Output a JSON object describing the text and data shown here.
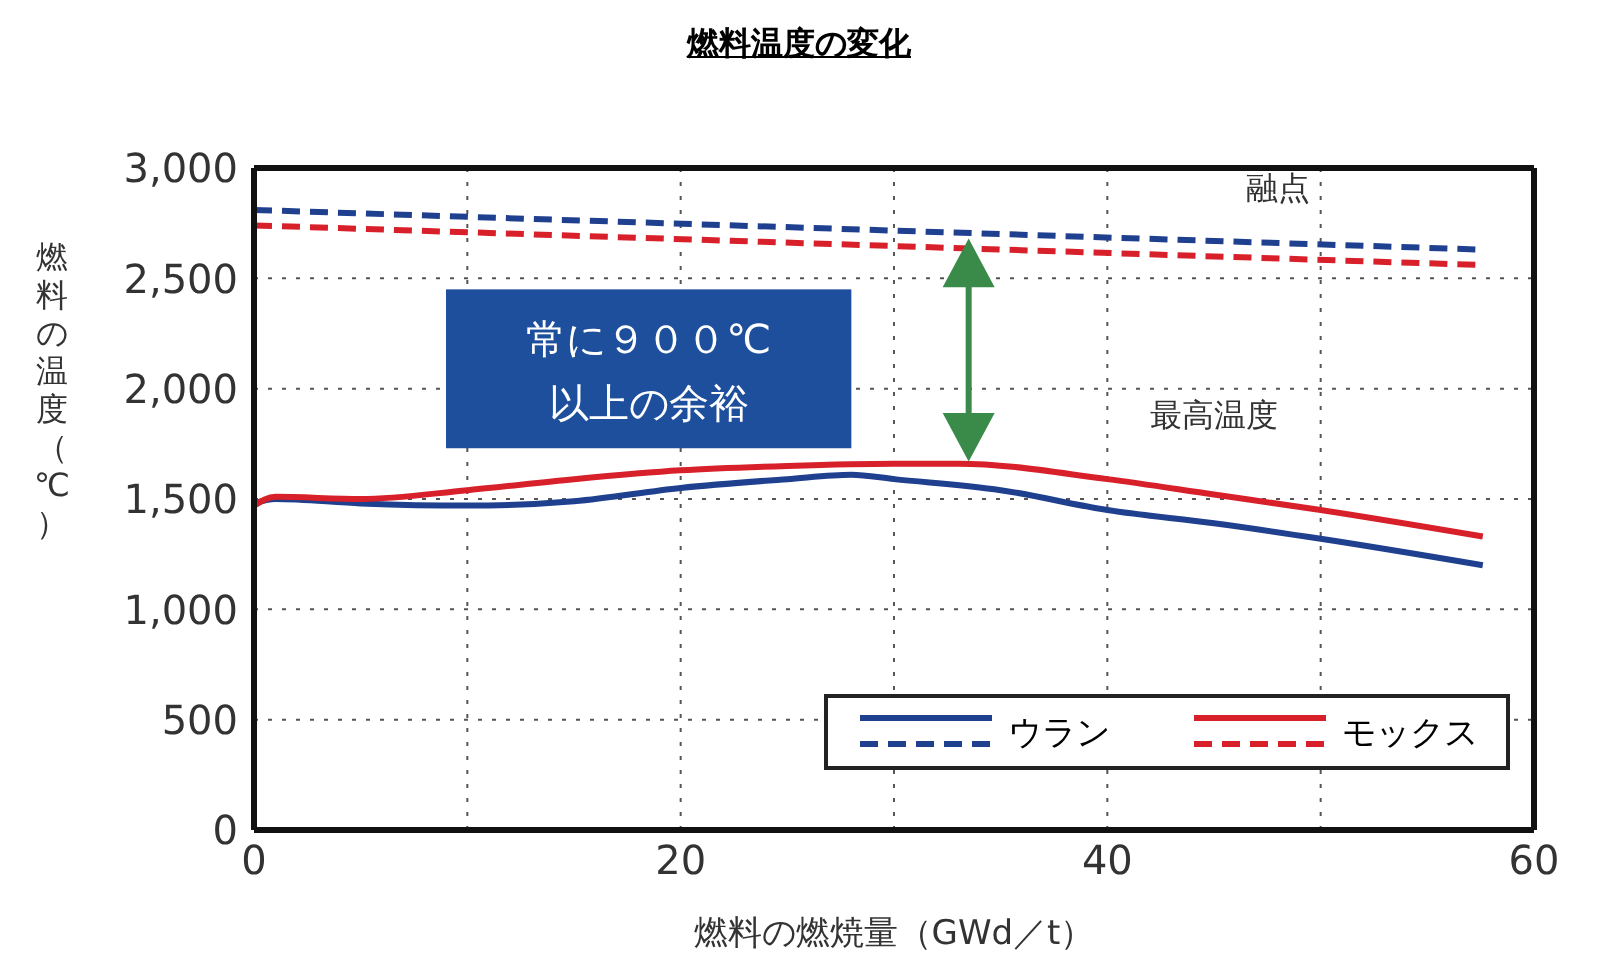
{
  "chart_data": {
    "type": "line",
    "title": "燃料温度の変化",
    "xlabel": "燃料の燃焼量（GWd／t）",
    "ylabel": "燃料の温度（℃）",
    "xlim": [
      0,
      60
    ],
    "xticks": [
      0,
      {
        "value": 10,
        "label": null
      },
      20,
      {
        "value": 30,
        "label": null
      },
      40,
      {
        "value": 50,
        "label": null
      },
      60
    ],
    "ylim": [
      0,
      3000
    ],
    "yticks": [
      0,
      500,
      {
        "value": 1000,
        "label": "1,000"
      },
      {
        "value": 1500,
        "label": "1,500"
      },
      {
        "value": 2000,
        "label": "2,000"
      },
      {
        "value": 2500,
        "label": "2,500"
      },
      {
        "value": 3000,
        "label": "3,000"
      }
    ],
    "grid": true,
    "legend": "bottom right",
    "annotations": [
      "融点",
      "最高温度",
      "常に９００℃\n以上の余裕"
    ],
    "series": [
      {
        "name": "ウラン",
        "color": "#1f3f8f",
        "line_style": "solid",
        "x": [
          0,
          1,
          5,
          10,
          15,
          20,
          25,
          28,
          30,
          35,
          40,
          45,
          50,
          57.6
        ],
        "values": [
          1480,
          1500,
          1480,
          1470,
          1490,
          1550,
          1590,
          1610,
          1590,
          1540,
          1450,
          1390,
          1320,
          1200
        ]
      },
      {
        "color": "#1f3f8f",
        "line_style": "dashed",
        "x": [
          0,
          57.6
        ],
        "values": [
          2810,
          2630
        ]
      },
      {
        "name": "モックス",
        "color": "#d8202a",
        "line_style": "solid",
        "x": [
          0,
          1,
          5,
          10,
          15,
          20,
          25,
          30,
          33,
          40,
          45,
          50,
          57.6
        ],
        "values": [
          1470,
          1510,
          1500,
          1540,
          1590,
          1630,
          1650,
          1660,
          1660,
          1590,
          1520,
          1450,
          1330
        ]
      },
      {
        "color": "#d8202a",
        "line_style": "dashed",
        "x": [
          0,
          57.6
        ],
        "values": [
          2740,
          2560
        ]
      }
    ]
  }
}
